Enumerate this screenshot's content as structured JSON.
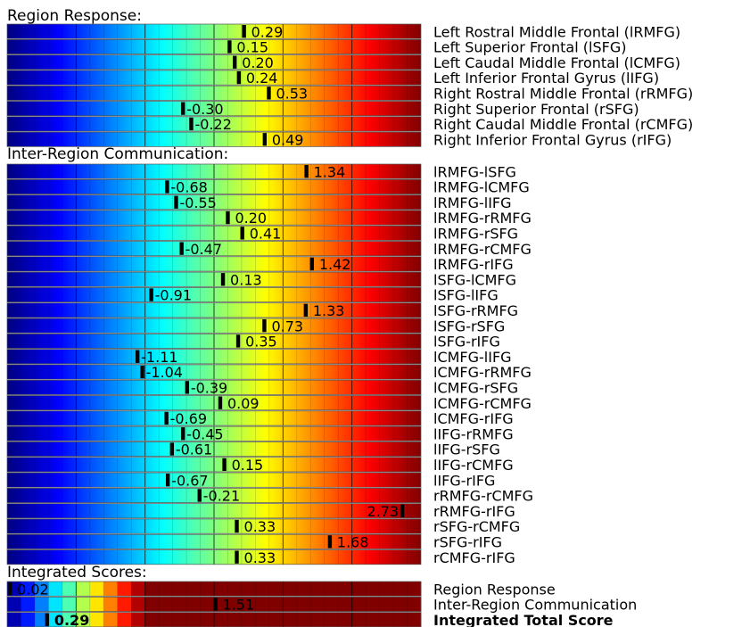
{
  "chart_data": [
    {
      "type": "heatmap",
      "title": "Region Response:",
      "range": [
        -2,
        2
      ],
      "colorscale": "jet",
      "rows": [
        {
          "label": "Left Rostral Middle Frontal (lRMFG)",
          "value": 0.29,
          "value_label": "0.29"
        },
        {
          "label": "Left Superior Frontal (lSFG)",
          "value": 0.15,
          "value_label": "0.15"
        },
        {
          "label": "Left Caudal Middle Frontal (lCMFG)",
          "value": 0.2,
          "value_label": "0.20"
        },
        {
          "label": "Left Inferior Frontal Gyrus (lIFG)",
          "value": 0.24,
          "value_label": "0.24"
        },
        {
          "label": "Right Rostral Middle Frontal (rRMFG)",
          "value": 0.53,
          "value_label": "0.53"
        },
        {
          "label": "Right Superior Frontal (rSFG)",
          "value": -0.3,
          "value_label": "-0.30"
        },
        {
          "label": "Right Caudal Middle Frontal (rCMFG)",
          "value": -0.22,
          "value_label": "-0.22"
        },
        {
          "label": "Right Inferior Frontal Gyrus (rIFG)",
          "value": 0.49,
          "value_label": "0.49"
        }
      ]
    },
    {
      "type": "heatmap",
      "title": "Inter-Region Communication:",
      "range": [
        -3,
        3
      ],
      "colorscale": "jet",
      "rows": [
        {
          "label": "lRMFG-lSFG",
          "value": 1.34,
          "value_label": "1.34"
        },
        {
          "label": "lRMFG-lCMFG",
          "value": -0.68,
          "value_label": "-0.68"
        },
        {
          "label": "lRMFG-lIFG",
          "value": -0.55,
          "value_label": "-0.55"
        },
        {
          "label": "lRMFG-rRMFG",
          "value": 0.2,
          "value_label": "0.20"
        },
        {
          "label": "lRMFG-rSFG",
          "value": 0.41,
          "value_label": "0.41"
        },
        {
          "label": "lRMFG-rCMFG",
          "value": -0.47,
          "value_label": "-0.47"
        },
        {
          "label": "lRMFG-rIFG",
          "value": 1.42,
          "value_label": "1.42"
        },
        {
          "label": "lSFG-lCMFG",
          "value": 0.13,
          "value_label": "0.13"
        },
        {
          "label": "lSFG-lIFG",
          "value": -0.91,
          "value_label": "-0.91"
        },
        {
          "label": "lSFG-rRMFG",
          "value": 1.33,
          "value_label": "1.33"
        },
        {
          "label": "lSFG-rSFG",
          "value": 0.73,
          "value_label": "0.73"
        },
        {
          "label": "lSFG-rIFG",
          "value": 0.35,
          "value_label": "0.35"
        },
        {
          "label": "lCMFG-lIFG",
          "value": -1.11,
          "value_label": "-1.11"
        },
        {
          "label": "lCMFG-rRMFG",
          "value": -1.04,
          "value_label": "-1.04"
        },
        {
          "label": "lCMFG-rSFG",
          "value": -0.39,
          "value_label": "-0.39"
        },
        {
          "label": "lCMFG-rCMFG",
          "value": 0.09,
          "value_label": "0.09"
        },
        {
          "label": "lCMFG-rIFG",
          "value": -0.69,
          "value_label": "-0.69"
        },
        {
          "label": "lIFG-rRMFG",
          "value": -0.45,
          "value_label": "-0.45"
        },
        {
          "label": "lIFG-rSFG",
          "value": -0.61,
          "value_label": "-0.61"
        },
        {
          "label": "lIFG-rCMFG",
          "value": 0.15,
          "value_label": "0.15"
        },
        {
          "label": "lIFG-rIFG",
          "value": -0.67,
          "value_label": "-0.67"
        },
        {
          "label": "rRMFG-rCMFG",
          "value": -0.21,
          "value_label": "-0.21"
        },
        {
          "label": "rRMFG-rIFG",
          "value": 2.73,
          "value_label": "2.73"
        },
        {
          "label": "rSFG-rCMFG",
          "value": 0.33,
          "value_label": "0.33"
        },
        {
          "label": "rSFG-rIFG",
          "value": 1.68,
          "value_label": "1.68"
        },
        {
          "label": "rCMFG-rIFG",
          "value": 0.33,
          "value_label": "0.33"
        }
      ]
    },
    {
      "type": "heatmap",
      "title": "Integrated Scores:",
      "range": [
        0,
        3
      ],
      "colorscale": "jet",
      "rows": [
        {
          "label": "Region Response",
          "value": 0.02,
          "value_label": "0.02",
          "bold": false
        },
        {
          "label": "Inter-Region Communication",
          "value": 1.51,
          "value_label": "1.51",
          "bold": false
        },
        {
          "label": "Integrated Total Score",
          "value": 0.29,
          "value_label": "0.29",
          "bold": true
        }
      ]
    }
  ]
}
